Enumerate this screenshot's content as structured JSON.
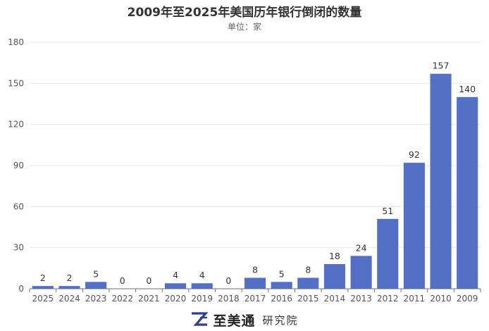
{
  "chart_data": {
    "type": "bar",
    "title": "2009年至2025年美国历年银行倒闭的数量",
    "subtitle": "单位：家",
    "categories": [
      "2025",
      "2024",
      "2023",
      "2022",
      "2021",
      "2020",
      "2019",
      "2018",
      "2017",
      "2016",
      "2015",
      "2014",
      "2013",
      "2012",
      "2011",
      "2010",
      "2009"
    ],
    "values": [
      2,
      2,
      5,
      0,
      0,
      4,
      4,
      0,
      8,
      5,
      8,
      18,
      24,
      51,
      92,
      157,
      140
    ],
    "ylim": [
      0,
      180
    ],
    "yticks": [
      0,
      30,
      60,
      90,
      120,
      150,
      180
    ],
    "grid": true,
    "bar_color": "#5470c6"
  },
  "footer": {
    "brand_name": "至美通",
    "brand_sub": "研究院",
    "logo_icon": "z-logo-icon",
    "logo_color": "#2f3e8f"
  }
}
